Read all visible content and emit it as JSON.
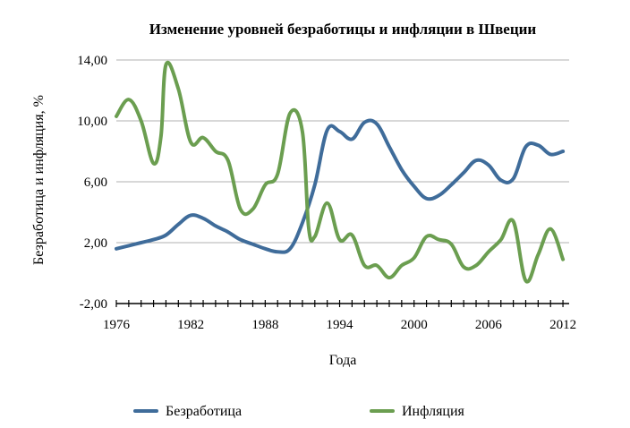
{
  "chart_data": {
    "type": "line",
    "title": "Изменение уровней безработицы и инфляции в Швеции",
    "xlabel": "Года",
    "ylabel": "Безработица и инфляция, %",
    "xlim": [
      1976,
      2012.5
    ],
    "ylim": [
      -2,
      14
    ],
    "x_ticks": [
      "1976",
      "1982",
      "1988",
      "1994",
      "2000",
      "2006",
      "2012"
    ],
    "y_ticks": [
      "-2,00",
      "2,00",
      "6,00",
      "10,00",
      "14,00"
    ],
    "grid": true,
    "legend_position": "bottom",
    "series": [
      {
        "name": "Безработица",
        "color": "#3f6c9a",
        "points": [
          [
            1976,
            1.6
          ],
          [
            1977,
            1.8
          ],
          [
            1978,
            2.0
          ],
          [
            1979,
            2.2
          ],
          [
            1980,
            2.5
          ],
          [
            1981,
            3.2
          ],
          [
            1982,
            3.8
          ],
          [
            1983,
            3.6
          ],
          [
            1984,
            3.1
          ],
          [
            1985,
            2.7
          ],
          [
            1986,
            2.2
          ],
          [
            1987,
            1.9
          ],
          [
            1988,
            1.6
          ],
          [
            1989,
            1.4
          ],
          [
            1990,
            1.6
          ],
          [
            1991,
            3.3
          ],
          [
            1992,
            5.8
          ],
          [
            1993,
            9.4
          ],
          [
            1994,
            9.3
          ],
          [
            1995,
            8.8
          ],
          [
            1996,
            9.9
          ],
          [
            1997,
            9.8
          ],
          [
            1998,
            8.3
          ],
          [
            1999,
            6.8
          ],
          [
            2000,
            5.7
          ],
          [
            2001,
            4.9
          ],
          [
            2002,
            5.1
          ],
          [
            2003,
            5.8
          ],
          [
            2004,
            6.6
          ],
          [
            2005,
            7.4
          ],
          [
            2006,
            7.1
          ],
          [
            2007,
            6.1
          ],
          [
            2008,
            6.2
          ],
          [
            2009,
            8.3
          ],
          [
            2010,
            8.4
          ],
          [
            2011,
            7.8
          ],
          [
            2012,
            8.0
          ]
        ]
      },
      {
        "name": "Инфляция",
        "color": "#6b9e50",
        "points": [
          [
            1976,
            10.3
          ],
          [
            1977,
            11.4
          ],
          [
            1978,
            10.0
          ],
          [
            1979,
            7.2
          ],
          [
            1979.6,
            9.0
          ],
          [
            1980,
            13.7
          ],
          [
            1981,
            12.1
          ],
          [
            1982,
            8.6
          ],
          [
            1983,
            8.9
          ],
          [
            1984,
            8.0
          ],
          [
            1985,
            7.4
          ],
          [
            1986,
            4.2
          ],
          [
            1987,
            4.2
          ],
          [
            1988,
            5.8
          ],
          [
            1989,
            6.5
          ],
          [
            1990,
            10.5
          ],
          [
            1991,
            9.3
          ],
          [
            1991.5,
            3.0
          ],
          [
            1992,
            2.4
          ],
          [
            1993,
            4.6
          ],
          [
            1994,
            2.2
          ],
          [
            1995,
            2.5
          ],
          [
            1996,
            0.5
          ],
          [
            1997,
            0.5
          ],
          [
            1998,
            -0.3
          ],
          [
            1999,
            0.5
          ],
          [
            2000,
            1.0
          ],
          [
            2001,
            2.4
          ],
          [
            2002,
            2.2
          ],
          [
            2003,
            1.9
          ],
          [
            2004,
            0.4
          ],
          [
            2005,
            0.5
          ],
          [
            2006,
            1.4
          ],
          [
            2007,
            2.2
          ],
          [
            2008,
            3.4
          ],
          [
            2009,
            -0.5
          ],
          [
            2010,
            1.2
          ],
          [
            2011,
            2.9
          ],
          [
            2012,
            0.9
          ]
        ]
      }
    ]
  }
}
